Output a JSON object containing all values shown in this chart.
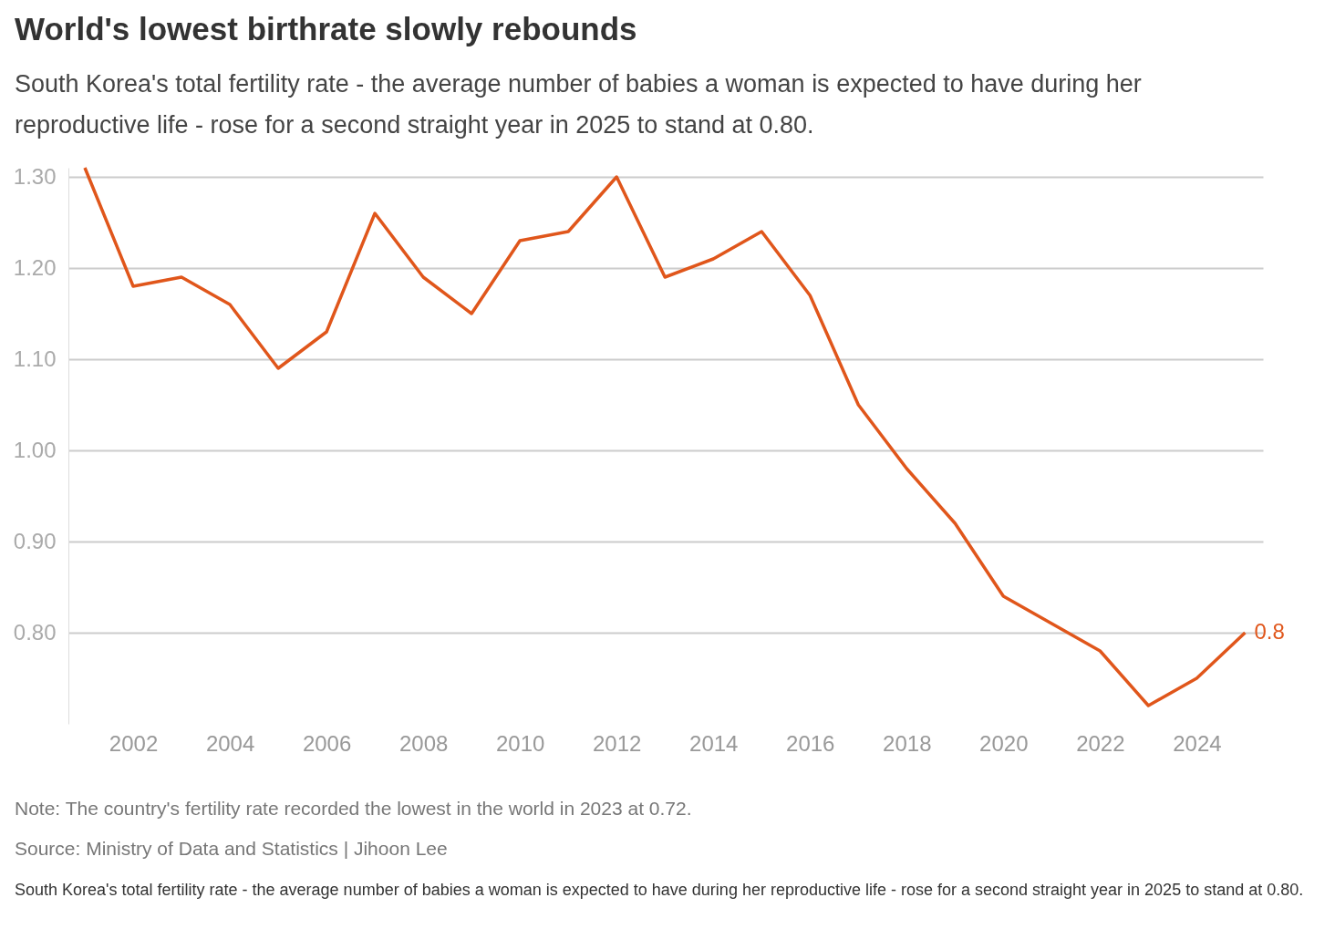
{
  "chart_data": {
    "type": "line",
    "title": "World's lowest birthrate slowly rebounds",
    "subtitle": "South Korea's total fertility rate - the average number of babies a woman is expected to have during her reproductive life - rose for a second straight year in 2025 to stand at 0.80.",
    "x": [
      2001,
      2002,
      2003,
      2004,
      2005,
      2006,
      2007,
      2008,
      2009,
      2010,
      2011,
      2012,
      2013,
      2014,
      2015,
      2016,
      2017,
      2018,
      2019,
      2020,
      2021,
      2022,
      2023,
      2024,
      2025
    ],
    "series": [
      {
        "color": "#e0561b",
        "values": [
          1.31,
          1.18,
          1.19,
          1.16,
          1.09,
          1.13,
          1.26,
          1.19,
          1.15,
          1.23,
          1.24,
          1.3,
          1.19,
          1.21,
          1.24,
          1.17,
          1.05,
          0.98,
          0.92,
          0.84,
          0.81,
          0.78,
          0.72,
          0.75,
          0.8
        ]
      }
    ],
    "xlim": [
      2000.66,
      2025.37
    ],
    "xticks": [
      2002,
      2004,
      2006,
      2008,
      2010,
      2012,
      2014,
      2016,
      2018,
      2020,
      2022,
      2024
    ],
    "ylim": [
      0.7,
      1.31
    ],
    "yticks": [
      {
        "value": 0.8,
        "label": "0.80"
      },
      {
        "value": 0.9,
        "label": "0.90"
      },
      {
        "value": 1.0,
        "label": "1.00"
      },
      {
        "value": 1.1,
        "label": "1.10"
      },
      {
        "value": 1.2,
        "label": "1.20"
      },
      {
        "value": 1.3,
        "label": "1.30"
      }
    ],
    "grid": "y",
    "legend": false,
    "marker": "none",
    "line_style": "solid",
    "annotations": [
      {
        "text": "0.8",
        "x": 2025,
        "y": 0.8
      },
      "Note: The country's fertility rate recorded the lowest in the world in 2023 at 0.72.",
      "Source: Ministry of Data and Statistics | Jihoon Lee",
      "South Korea's total fertility rate - the average number of babies a woman is expected to have during her reproductive life - rose for a second straight year in 2025 to stand at 0.80."
    ]
  }
}
